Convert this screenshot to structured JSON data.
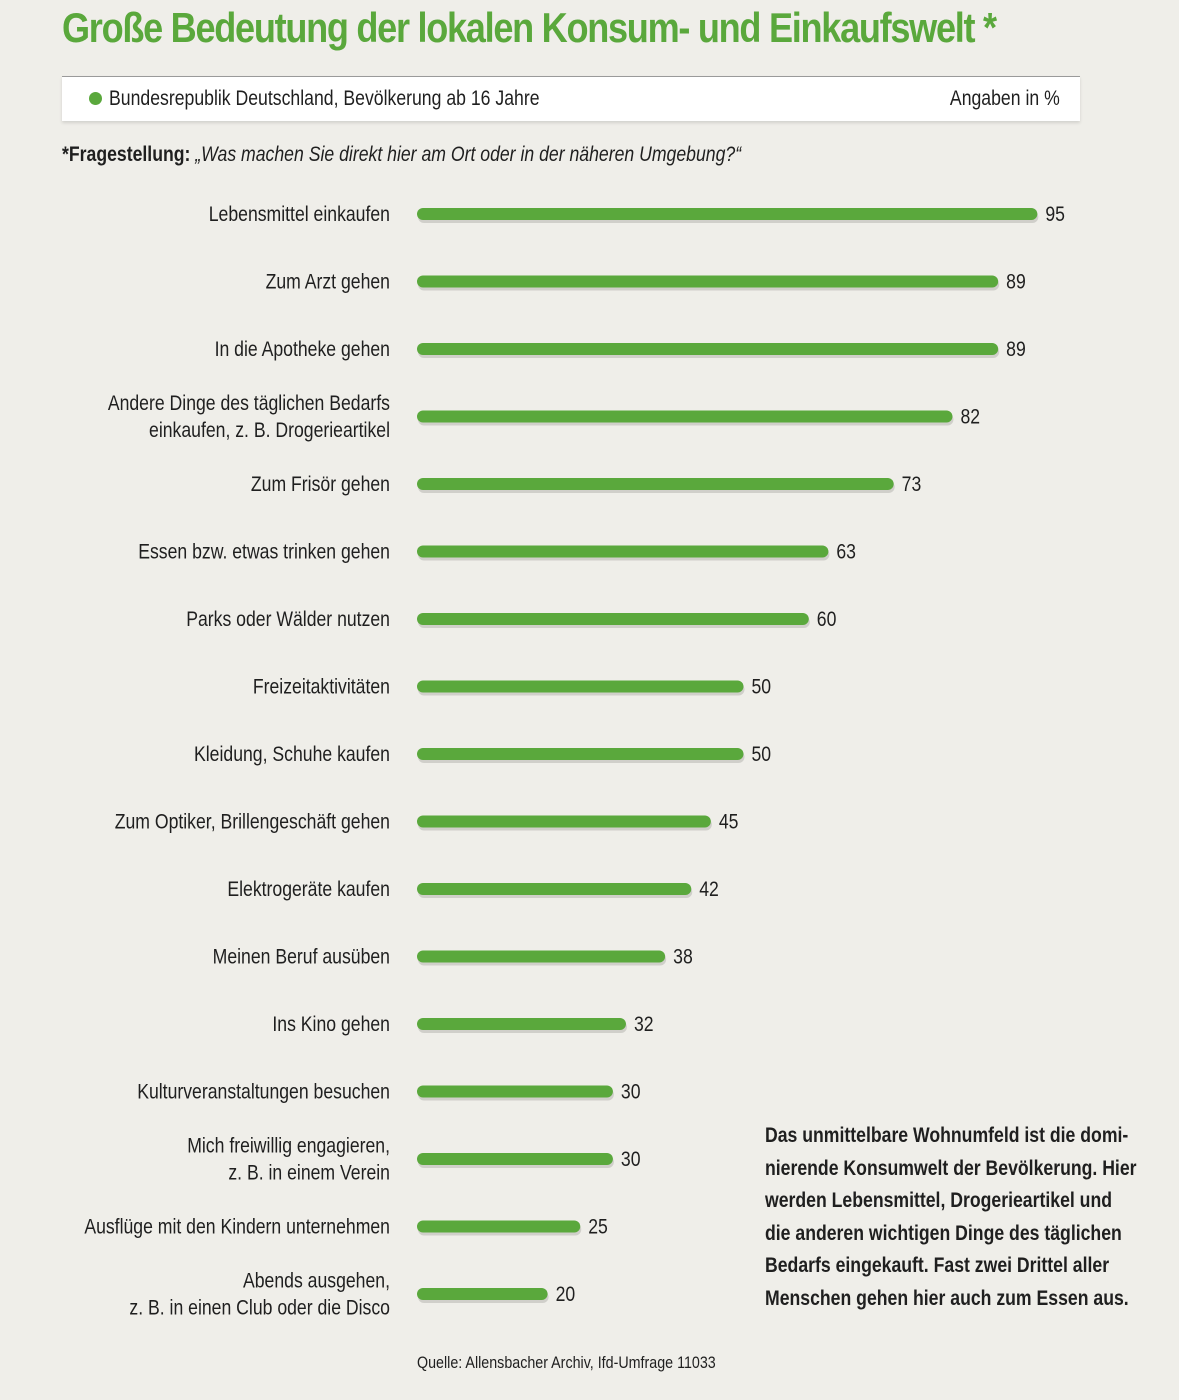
{
  "header": {
    "title": "Große Bedeutung der lokalen Konsum- und Einkaufswelt *",
    "population": "Bundesrepublik Deutschland, Bevölkerung ab 16 Jahre",
    "unit_note": "Angaben in %"
  },
  "question": {
    "label": "*Fragestellung:",
    "text": "„Was machen Sie direkt hier am Ort oder in der näheren Umgebung?“"
  },
  "colors": {
    "accent": "#5aa83c",
    "background": "#efeee9"
  },
  "chart_data": {
    "type": "bar",
    "orientation": "horizontal",
    "categories": [
      "Lebensmittel einkaufen",
      "Zum Arzt gehen",
      "In die Apotheke gehen",
      "Andere Dinge des täglichen Bedarfs\neinkaufen, z. B. Drogerieartikel",
      "Zum Frisör gehen",
      "Essen bzw. etwas trinken gehen",
      "Parks oder Wälder nutzen",
      "Freizeitaktivitäten",
      "Kleidung, Schuhe kaufen",
      "Zum Optiker, Brillengeschäft gehen",
      "Elektrogeräte kaufen",
      "Meinen Beruf ausüben",
      "Ins Kino gehen",
      "Kulturveranstaltungen besuchen",
      "Mich freiwillig engagieren,\nz. B. in einem Verein",
      "Ausflüge mit den Kindern unternehmen",
      "Abends ausgehen,\nz. B. in einen Club oder die Disco"
    ],
    "values": [
      95,
      89,
      89,
      82,
      73,
      63,
      60,
      50,
      50,
      45,
      42,
      38,
      32,
      30,
      30,
      25,
      20
    ],
    "xlim": [
      0,
      100
    ],
    "grid": false,
    "data_labels": true
  },
  "note": "Das unmittelbare Wohnumfeld ist die domi-\nnierende Konsumwelt der Bevölkerung. Hier\nwerden Lebensmittel, Drogerieartikel und\ndie anderen wichtigen Dinge des täglichen\nBedarfs eingekauft. Fast zwei Drittel aller\nMenschen gehen hier auch zum Essen aus.",
  "source": "Quelle: Allensbacher Archiv, Ifd-Umfrage 11033"
}
